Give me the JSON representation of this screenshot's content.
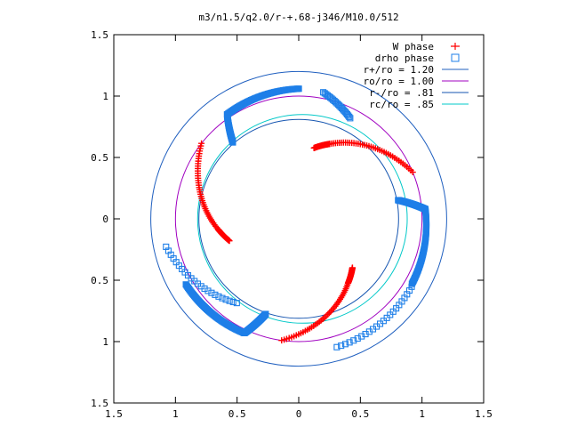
{
  "chart_data": {
    "type": "scatter",
    "title": "m3/n1.5/q2.0/r-+.68-j346/M10.0/512",
    "xlim": [
      -1.5,
      1.5
    ],
    "ylim": [
      -1.5,
      1.5
    ],
    "x_ticks": [
      -1.5,
      -1,
      -0.5,
      0,
      0.5,
      1,
      1.5
    ],
    "y_ticks": [
      -1.5,
      -1,
      -0.5,
      0,
      0.5,
      1,
      1.5
    ],
    "x_tick_labels": [
      "1.5",
      "1",
      "0.5",
      "0",
      "0.5",
      "1",
      "1.5"
    ],
    "y_tick_labels": [
      "1.5",
      "1",
      "0.5",
      "0",
      "0.5",
      "1",
      "1.5"
    ],
    "grid": false,
    "legend_position": "top-right",
    "series": [
      {
        "name": "W phase",
        "marker": "plus",
        "color": "#ff0000",
        "arms": [
          {
            "r0": 1.0,
            "th0": -1.71,
            "r1": 0.66,
            "th1": -0.92,
            "bulge": -0.6
          },
          {
            "r0": 0.66,
            "th0": -0.92,
            "r1": 0.59,
            "th1": -0.74,
            "bulge": 0.0
          },
          {
            "r0": 1.0,
            "th0": 2.48,
            "r1": 0.66,
            "th1": 3.27,
            "bulge": -0.6
          },
          {
            "r0": 0.66,
            "th0": 3.27,
            "r1": 0.59,
            "th1": 3.45,
            "bulge": 0.0
          },
          {
            "r0": 1.0,
            "th0": 0.39,
            "r1": 0.66,
            "th1": 1.18,
            "bulge": -0.6
          },
          {
            "r0": 0.66,
            "th0": 1.18,
            "r1": 0.59,
            "th1": 1.36,
            "bulge": 0.0
          }
        ]
      },
      {
        "name": "drho phase",
        "marker": "square",
        "color": "#1e7fe8",
        "arms": [
          {
            "r0": 1.06,
            "th0": 1.57,
            "r1": 1.03,
            "th1": 2.17,
            "bulge": 0.0
          },
          {
            "r0": 1.03,
            "th0": 2.17,
            "r1": 0.82,
            "th1": 2.28,
            "bulge": 0.0
          },
          {
            "r0": 1.06,
            "th0": 3.67,
            "r1": 1.03,
            "th1": 4.27,
            "bulge": 0.0
          },
          {
            "r0": 1.03,
            "th0": 4.27,
            "r1": 0.82,
            "th1": 4.38,
            "bulge": 0.0
          },
          {
            "r0": 1.06,
            "th0": 5.76,
            "r1": 1.03,
            "th1": 6.36,
            "bulge": 0.0
          },
          {
            "r0": 1.03,
            "th0": 6.36,
            "r1": 0.82,
            "th1": 6.47,
            "bulge": 0.0
          }
        ],
        "tails": [
          {
            "r0": 1.1,
            "th0": 3.35,
            "r1": 0.85,
            "th1": 4.08
          },
          {
            "r0": 1.09,
            "th0": 5.0,
            "r1": 1.07,
            "th1": 5.74
          },
          {
            "r0": 1.05,
            "th0": 1.38,
            "r1": 0.92,
            "th1": 1.1
          }
        ]
      }
    ],
    "circles": [
      {
        "name": "r+/ro = 1.20",
        "r": 1.2,
        "color": "#1f5fbf"
      },
      {
        "name": "ro/ro = 1.00",
        "r": 1.0,
        "color": "#a000c0"
      },
      {
        "name": "r-/ro =  .81",
        "r": 0.81,
        "color": "#1555b0"
      },
      {
        "name": "rc/ro =  .85",
        "r": 0.85,
        "color": "#00c8c8",
        "cx": 0.03
      }
    ]
  }
}
